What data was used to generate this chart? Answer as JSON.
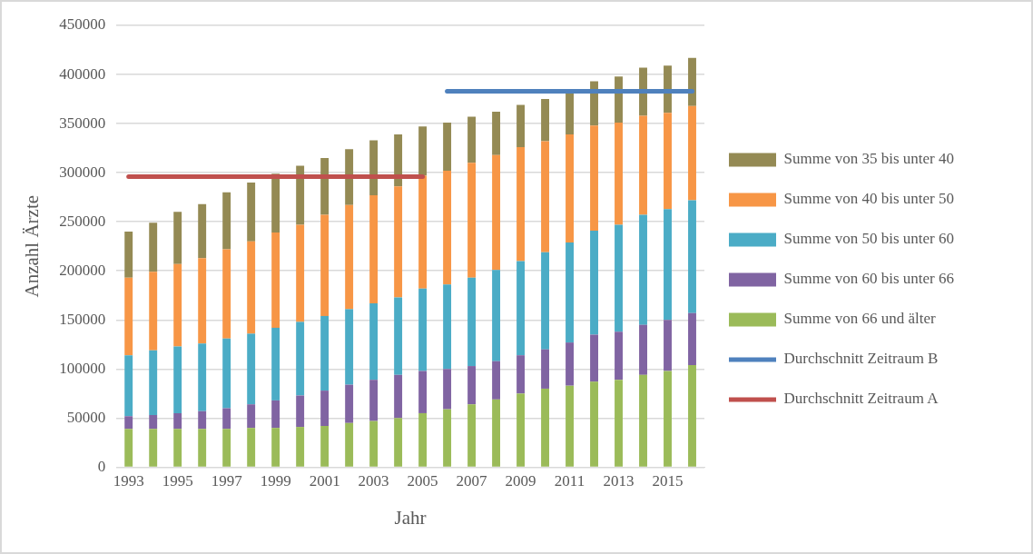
{
  "chart_data": {
    "type": "bar",
    "stacked": true,
    "xlabel": "Jahr",
    "ylabel": "Anzahl Ärzte",
    "categories": [
      "1993",
      null,
      "1995",
      null,
      "1997",
      null,
      "1999",
      null,
      "2001",
      null,
      "2003",
      null,
      "2005",
      null,
      "2007",
      null,
      "2009",
      null,
      "2011",
      null,
      "2013",
      null,
      "2015",
      null
    ],
    "ylim": [
      0,
      450000
    ],
    "yticks": [
      0,
      50000,
      100000,
      150000,
      200000,
      250000,
      300000,
      350000,
      400000,
      450000
    ],
    "grid": "y",
    "legend": "right",
    "series": [
      {
        "name": "Summe von 66 und älter",
        "color": "#9bbb59",
        "values": [
          39000,
          39000,
          39000,
          39000,
          39000,
          40000,
          40000,
          41000,
          42000,
          45000,
          47000,
          50000,
          55000,
          59000,
          64000,
          69000,
          75000,
          80000,
          83000,
          87000,
          89000,
          94000,
          98000,
          104000
        ]
      },
      {
        "name": "Summe von 60 bis unter 66",
        "color": "#8064a2",
        "values": [
          13000,
          14000,
          16000,
          18000,
          21000,
          24000,
          28000,
          32000,
          36000,
          39000,
          42000,
          44000,
          43000,
          41000,
          39000,
          39000,
          39000,
          40000,
          44000,
          48000,
          49000,
          51000,
          52000,
          53000
        ]
      },
      {
        "name": "Summe von 50 bis unter 60",
        "color": "#4bacc6",
        "values": [
          62000,
          66000,
          68000,
          69000,
          71000,
          72000,
          74000,
          75000,
          76000,
          77000,
          78000,
          79000,
          84000,
          86000,
          90000,
          93000,
          96000,
          99000,
          102000,
          106000,
          109000,
          112000,
          113000,
          115000
        ]
      },
      {
        "name": "Summe von 40 bis unter 50",
        "color": "#f79646",
        "values": [
          79000,
          80000,
          84000,
          87000,
          91000,
          94000,
          97000,
          99000,
          103000,
          106000,
          110000,
          113000,
          115000,
          116000,
          117000,
          117000,
          116000,
          113000,
          110000,
          107000,
          104000,
          101000,
          98000,
          96000
        ]
      },
      {
        "name": "Summe von 35 bis unter 40",
        "color": "#948a54",
        "values": [
          47000,
          50000,
          53000,
          55000,
          58000,
          60000,
          60000,
          60000,
          58000,
          57000,
          56000,
          53000,
          50000,
          49000,
          47000,
          44000,
          43000,
          43000,
          44000,
          45000,
          47000,
          49000,
          48000,
          49000
        ]
      },
      {
        "name": "Durchschnitt Zeitraum B",
        "type": "line",
        "color": "#4f81bd",
        "values": [
          null,
          null,
          null,
          null,
          null,
          null,
          null,
          null,
          null,
          null,
          null,
          null,
          null,
          383000,
          383000,
          383000,
          383000,
          383000,
          383000,
          383000,
          383000,
          383000,
          383000,
          383000
        ]
      },
      {
        "name": "Durchschnitt Zeitraum A",
        "type": "line",
        "color": "#c0504d",
        "values": [
          296000,
          296000,
          296000,
          296000,
          296000,
          296000,
          296000,
          296000,
          296000,
          296000,
          296000,
          296000,
          296000,
          null,
          null,
          null,
          null,
          null,
          null,
          null,
          null,
          null,
          null,
          null
        ]
      }
    ],
    "marker": "none",
    "line_style": "solid"
  }
}
